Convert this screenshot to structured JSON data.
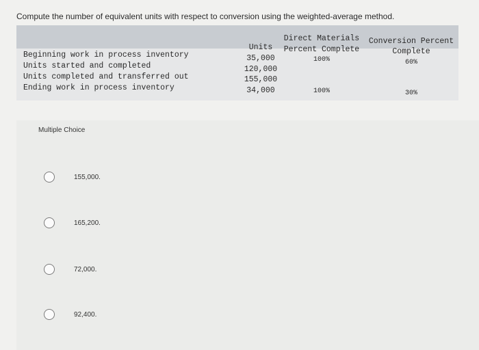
{
  "question": "Compute the number of equivalent units with respect to conversion using the weighted-average method.",
  "table": {
    "headers": {
      "units": "Units",
      "direct_materials_line1": "Direct Materials",
      "direct_materials_line2": "Percent Complete",
      "conversion_line1": "Conversion Percent",
      "conversion_line2": "Complete"
    },
    "rows": [
      {
        "label": "Beginning work in process inventory",
        "units": "35,000",
        "dm": "100%",
        "cp": "60%"
      },
      {
        "label": "Units started and completed",
        "units": "120,000",
        "dm": "",
        "cp": ""
      },
      {
        "label": "Units completed and transferred out",
        "units": "155,000",
        "dm": "",
        "cp": ""
      },
      {
        "label": "Ending work in process inventory",
        "units": "34,000",
        "dm": "100%",
        "cp": "30%"
      }
    ]
  },
  "multiple_choice": {
    "title": "Multiple Choice",
    "options": [
      "155,000.",
      "165,200.",
      "72,000.",
      "92,400."
    ]
  }
}
